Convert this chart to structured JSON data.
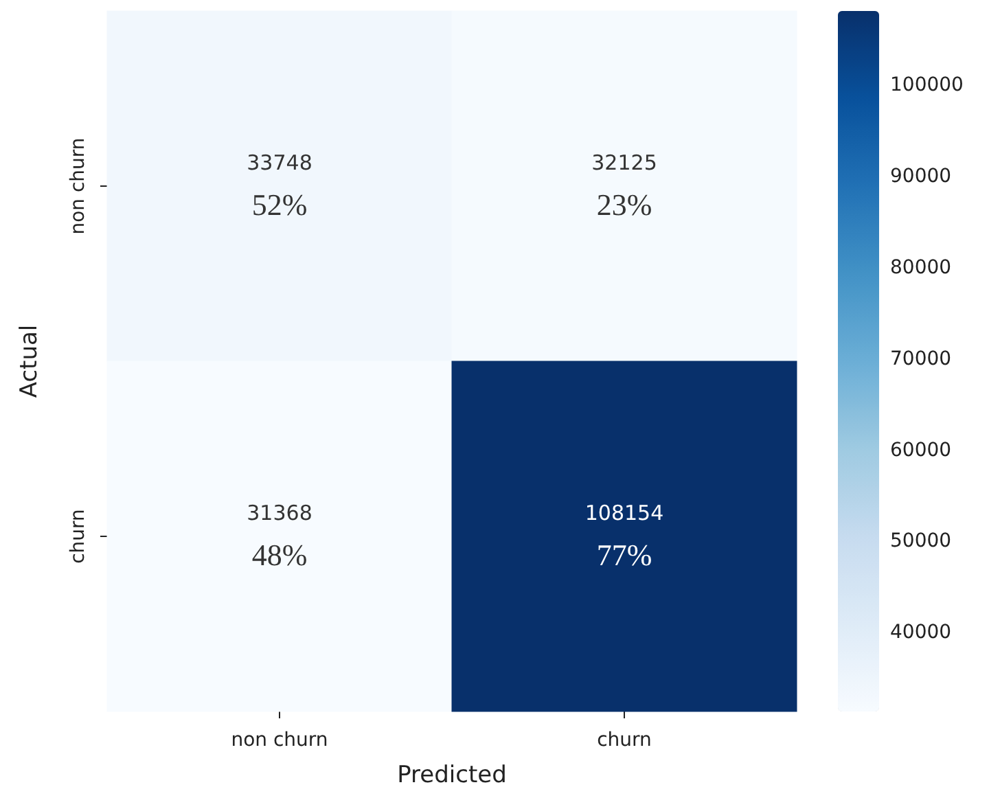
{
  "chart_data": {
    "type": "heatmap",
    "xlabel": "Predicted",
    "ylabel": "Actual",
    "categories": [
      "non churn",
      "churn"
    ],
    "y_categories": [
      "non churn",
      "churn"
    ],
    "cells": [
      [
        33748,
        32125
      ],
      [
        31368,
        108154
      ]
    ],
    "cell_labels": [
      [
        "33748\n52%",
        "32125\n23%"
      ],
      [
        "31368\n48%",
        "108154\n77%"
      ]
    ],
    "clim": [
      31368,
      108154
    ],
    "cticks": [
      40000,
      50000,
      60000,
      70000,
      80000,
      90000,
      100000
    ]
  }
}
